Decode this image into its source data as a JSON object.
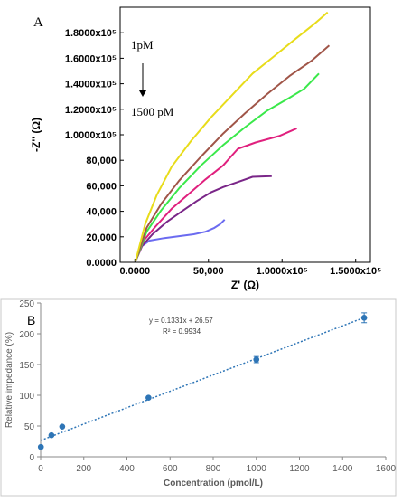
{
  "chart_data": [
    {
      "type": "line",
      "panel_label": "A",
      "xlabel": "Z' (Ω)",
      "ylabel": "-Z'' (Ω)",
      "xlim": [
        -10000,
        160000
      ],
      "ylim": [
        0,
        200000
      ],
      "x_ticks": [
        {
          "value": 0,
          "label": "0.0000"
        },
        {
          "value": 50000,
          "label": "50,000"
        },
        {
          "value": 100000,
          "label": "1.0000x10⁵"
        },
        {
          "value": 150000,
          "label": "1.5000x10⁵"
        }
      ],
      "y_ticks": [
        {
          "value": 0,
          "label": "0.0000"
        },
        {
          "value": 20000,
          "label": "20,000"
        },
        {
          "value": 40000,
          "label": "40,000"
        },
        {
          "value": 60000,
          "label": "60,000"
        },
        {
          "value": 80000,
          "label": "80,000"
        },
        {
          "value": 100000,
          "label": "1.0000x10⁵"
        },
        {
          "value": 120000,
          "label": "1.2000x10⁵"
        },
        {
          "value": 140000,
          "label": "1.4000x10⁵"
        },
        {
          "value": 160000,
          "label": "1.6000x10⁵"
        },
        {
          "value": 180000,
          "label": "1.8000x10⁵"
        }
      ],
      "annotations": {
        "top": "1pM",
        "bottom": "1500 pM"
      },
      "series": [
        {
          "color": "#6b6bf0",
          "x": [
            500,
            4000,
            10000,
            20000,
            30000,
            40000,
            48000,
            54000,
            58000,
            61000
          ],
          "y": [
            1000,
            12000,
            17000,
            19000,
            20500,
            22000,
            24000,
            27000,
            30000,
            33500
          ]
        },
        {
          "color": "#7a2688",
          "x": [
            500,
            5000,
            12000,
            22000,
            32000,
            42000,
            52000,
            60000,
            70000,
            80000,
            93000
          ],
          "y": [
            1000,
            13000,
            22000,
            32000,
            40000,
            48000,
            55000,
            59000,
            63000,
            67000,
            67500
          ]
        },
        {
          "color": "#e0207e",
          "x": [
            500,
            6000,
            14000,
            25000,
            36000,
            48000,
            60000,
            70000,
            82000,
            98000,
            110000
          ],
          "y": [
            1000,
            17000,
            28000,
            42000,
            53000,
            65000,
            76000,
            89000,
            94000,
            99000,
            105000
          ]
        },
        {
          "color": "#3ae84a",
          "x": [
            500,
            8000,
            18000,
            30000,
            45000,
            60000,
            75000,
            90000,
            105000,
            115000,
            125000
          ],
          "y": [
            1000,
            24000,
            41000,
            58000,
            76000,
            92000,
            106000,
            119000,
            129000,
            136000,
            148000
          ]
        },
        {
          "color": "#a05548",
          "x": [
            500,
            8000,
            18000,
            30000,
            45000,
            60000,
            75000,
            90000,
            105000,
            120000,
            132000
          ],
          "y": [
            1000,
            27000,
            46000,
            64000,
            83000,
            101000,
            117000,
            132000,
            146000,
            158000,
            170000
          ]
        },
        {
          "color": "#e8dc1a",
          "x": [
            500,
            7000,
            15000,
            25000,
            38000,
            52000,
            66000,
            80000,
            95000,
            110000,
            122000,
            131000
          ],
          "y": [
            1000,
            30000,
            53000,
            75000,
            95000,
            114000,
            131000,
            148000,
            162000,
            176000,
            187000,
            196000
          ]
        }
      ]
    },
    {
      "type": "scatter",
      "panel_label": "B",
      "xlabel": "Concentration (pmol/L)",
      "ylabel": "Relative impedance (%)",
      "xlim": [
        0,
        1600
      ],
      "ylim": [
        0,
        250
      ],
      "x_ticks": [
        0,
        200,
        400,
        600,
        800,
        1000,
        1200,
        1400,
        1600
      ],
      "y_ticks": [
        0,
        50,
        100,
        150,
        200,
        250
      ],
      "x": [
        1,
        50,
        100,
        500,
        1000,
        1500
      ],
      "y": [
        16,
        35,
        49,
        96,
        158,
        226
      ],
      "errors": [
        0,
        0,
        0,
        0,
        5,
        8
      ],
      "trendline": {
        "slope": 0.1331,
        "intercept": 26.57
      },
      "equation": "y = 0.1331x + 26.57",
      "r_squared": "R² = 0.9934",
      "marker_color": "#2e75b6"
    }
  ]
}
